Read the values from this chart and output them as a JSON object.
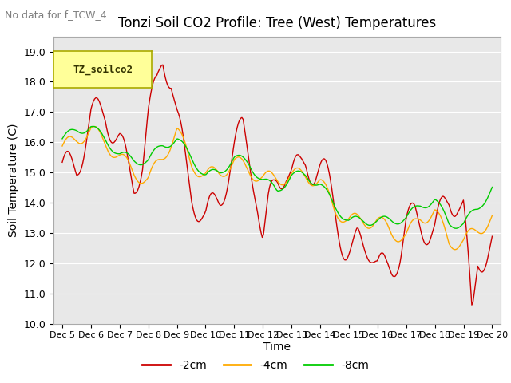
{
  "title": "Tonzi Soil CO2 Profile: Tree (West) Temperatures",
  "no_data_text": "No data for f_TCW_4",
  "ylabel": "Soil Temperature (C)",
  "xlabel": "Time",
  "legend_label": "TZ_soilco2",
  "line_labels": [
    "-2cm",
    "-4cm",
    "-8cm"
  ],
  "line_colors": [
    "#cc0000",
    "#ffaa00",
    "#00cc00"
  ],
  "ylim": [
    10.0,
    19.5
  ],
  "yticks": [
    10.0,
    11.0,
    12.0,
    13.0,
    14.0,
    15.0,
    16.0,
    17.0,
    18.0,
    19.0
  ],
  "xtick_labels": [
    "Dec 5",
    "Dec 6",
    "Dec 7",
    "Dec 8",
    "Dec 9",
    "Dec 10",
    "Dec 11",
    "Dec 12",
    "Dec 13",
    "Dec 14",
    "Dec 15",
    "Dec 16",
    "Dec 17",
    "Dec 18",
    "Dec 19",
    "Dec 20"
  ],
  "background_color": "#ffffff",
  "plot_bg_color": "#e8e8e8",
  "grid_color": "#ffffff"
}
